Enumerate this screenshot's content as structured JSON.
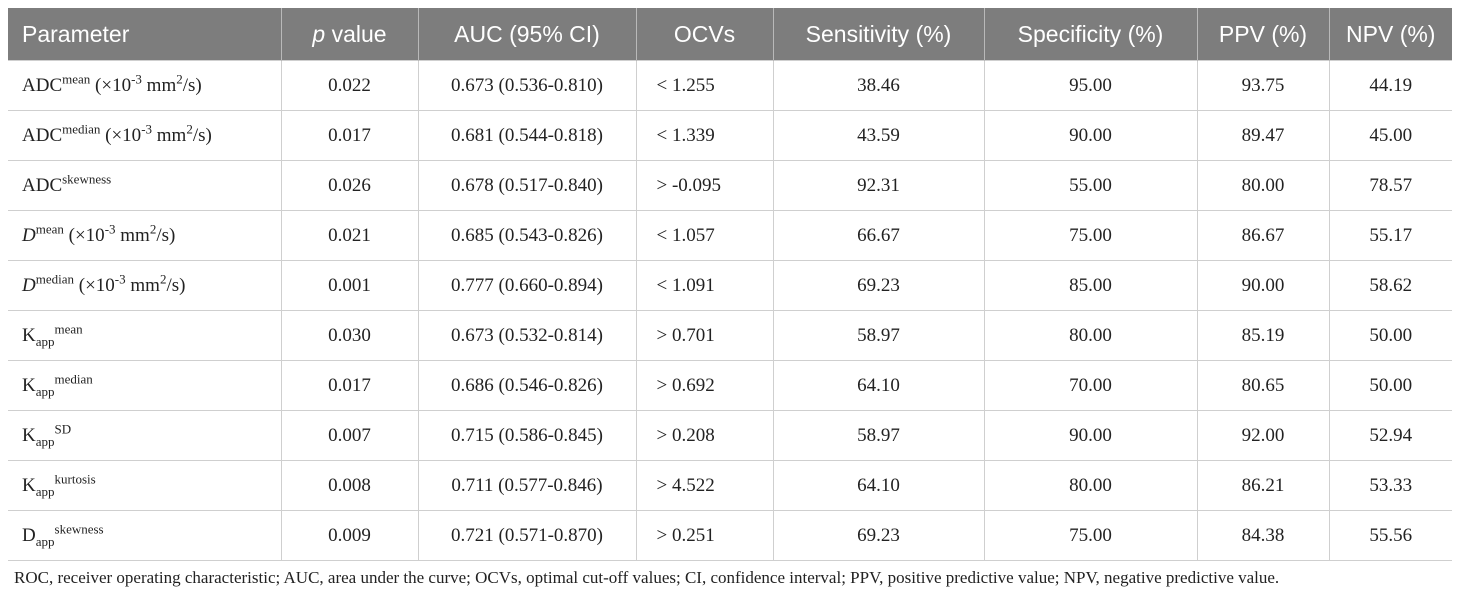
{
  "headers": [
    "Parameter",
    "p value",
    "AUC (95% CI)",
    "OCVs",
    "Sensitivity (%)",
    "Specificity (%)",
    "PPV (%)",
    "NPV (%)"
  ],
  "rows": [
    {
      "param": {
        "base": "ADC",
        "sup": "mean",
        "sub": "",
        "unit_pre": "(×10",
        "unit_exp": "-3",
        "unit_mid": " mm",
        "unit_exp2": "2",
        "unit_post": "/s)"
      },
      "p": "0.022",
      "auc": "0.673 (0.536-0.810)",
      "ocv": "< 1.255",
      "sens": "38.46",
      "spec": "95.00",
      "ppv": "93.75",
      "npv": "44.19"
    },
    {
      "param": {
        "base": "ADC",
        "sup": "median",
        "sub": "",
        "unit_pre": "(×10",
        "unit_exp": "-3",
        "unit_mid": " mm",
        "unit_exp2": "2",
        "unit_post": "/s)"
      },
      "p": "0.017",
      "auc": "0.681 (0.544-0.818)",
      "ocv": "< 1.339",
      "sens": "43.59",
      "spec": "90.00",
      "ppv": "89.47",
      "npv": "45.00"
    },
    {
      "param": {
        "base": "ADC",
        "sup": "skewness",
        "sub": ""
      },
      "p": "0.026",
      "auc": "0.678 (0.517-0.840)",
      "ocv": "> -0.095",
      "sens": "92.31",
      "spec": "55.00",
      "ppv": "80.00",
      "npv": "78.57"
    },
    {
      "param": {
        "base": "D",
        "italic": true,
        "sup": "mean",
        "sub": "",
        "unit_pre": "(×10",
        "unit_exp": "-3",
        "unit_mid": " mm",
        "unit_exp2": "2",
        "unit_post": "/s)"
      },
      "p": "0.021",
      "auc": "0.685 (0.543-0.826)",
      "ocv": "< 1.057",
      "sens": "66.67",
      "spec": "75.00",
      "ppv": "86.67",
      "npv": "55.17"
    },
    {
      "param": {
        "base": "D",
        "italic": true,
        "sup": "median",
        "sub": "",
        "unit_pre": "(×10",
        "unit_exp": "-3",
        "unit_mid": " mm",
        "unit_exp2": "2",
        "unit_post": "/s)"
      },
      "p": "0.001",
      "auc": "0.777 (0.660-0.894)",
      "ocv": "< 1.091",
      "sens": "69.23",
      "spec": "85.00",
      "ppv": "90.00",
      "npv": "58.62"
    },
    {
      "param": {
        "base": "K",
        "sub": "app",
        "sup": "mean"
      },
      "p": "0.030",
      "auc": "0.673 (0.532-0.814)",
      "ocv": "> 0.701",
      "sens": "58.97",
      "spec": "80.00",
      "ppv": "85.19",
      "npv": "50.00"
    },
    {
      "param": {
        "base": "K",
        "sub": "app",
        "sup": "median"
      },
      "p": "0.017",
      "auc": "0.686 (0.546-0.826)",
      "ocv": "> 0.692",
      "sens": "64.10",
      "spec": "70.00",
      "ppv": "80.65",
      "npv": "50.00"
    },
    {
      "param": {
        "base": "K",
        "sub": "app",
        "sup": "SD"
      },
      "p": "0.007",
      "auc": "0.715 (0.586-0.845)",
      "ocv": "> 0.208",
      "sens": "58.97",
      "spec": "90.00",
      "ppv": "92.00",
      "npv": "52.94"
    },
    {
      "param": {
        "base": "K",
        "sub": "app",
        "sup": "kurtosis"
      },
      "p": "0.008",
      "auc": "0.711 (0.577-0.846)",
      "ocv": "> 4.522",
      "sens": "64.10",
      "spec": "80.00",
      "ppv": "86.21",
      "npv": "53.33"
    },
    {
      "param": {
        "base": "D",
        "sub": "app",
        "sup": "skewness"
      },
      "p": "0.009",
      "auc": "0.721 (0.571-0.870)",
      "ocv": "> 0.251",
      "sens": "69.23",
      "spec": "75.00",
      "ppv": "84.38",
      "npv": "55.56"
    }
  ],
  "footnote": "ROC, receiver operating characteristic; AUC, area under the curve; OCVs, optimal cut-off values; CI, confidence interval; PPV, positive predictive value; NPV, negative predictive value."
}
